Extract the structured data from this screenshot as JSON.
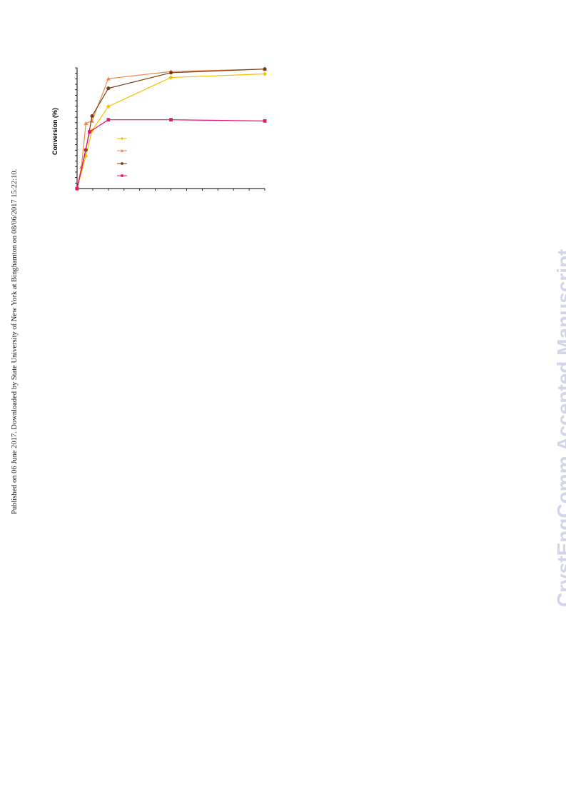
{
  "page": {
    "side_note": "Published on 06 June 2017. Downloaded by State University of New York at Binghamton on 08/06/2017 15:22:10.",
    "watermark": "CrystEngComm Accepted Manuscript"
  },
  "chart_data": {
    "type": "line",
    "ylabel": "Conversion (%)",
    "xlabel": "",
    "xlim": [
      0,
      30
    ],
    "ylim": [
      0,
      100
    ],
    "x_minor_ticks": 12,
    "y_minor_ticks": 22,
    "grid": false,
    "legend_placement": "center",
    "series": [
      {
        "color": "#f2c200",
        "marker": "diamond",
        "x": [
          0,
          1.4,
          2.4,
          5,
          15,
          30
        ],
        "y": [
          0,
          27,
          48,
          68,
          92,
          95
        ]
      },
      {
        "color": "#f08a4b",
        "marker": "triangle",
        "x": [
          0,
          0.7,
          1.4,
          2.4,
          5,
          15,
          30
        ],
        "y": [
          0,
          18,
          54,
          56,
          91,
          97,
          99
        ]
      },
      {
        "color": "#7a3b10",
        "marker": "circle",
        "x": [
          0,
          1.4,
          2.4,
          5,
          15,
          30
        ],
        "y": [
          0,
          32,
          60,
          83,
          96,
          99
        ]
      },
      {
        "color": "#e8156e",
        "marker": "square",
        "x": [
          0,
          2,
          5,
          15,
          30
        ],
        "y": [
          0,
          47,
          57,
          57,
          56
        ]
      }
    ]
  }
}
